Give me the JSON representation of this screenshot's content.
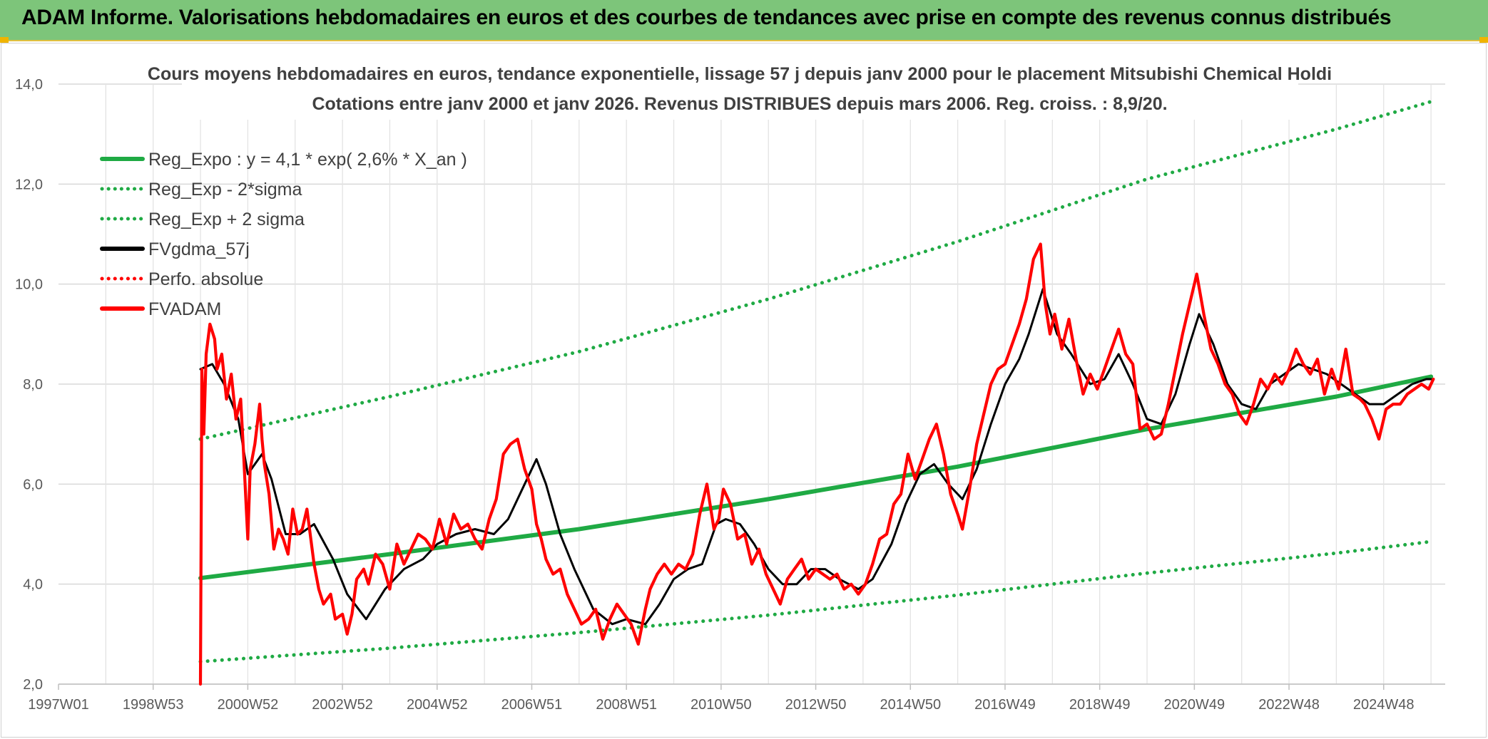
{
  "header": {
    "title": "ADAM Informe. Valorisations hebdomadaires en euros et des courbes de tendances avec prise en compte des revenus connus distribués"
  },
  "chart_data": {
    "type": "line",
    "title_line1": "Cours moyens hebdomadaires en euros, tendance exponentielle, lissage 57 j depuis janv 2000 pour le placement Mitsubishi Chemical Holdi",
    "title_line2": "Cotations entre janv 2000 et janv 2026. Revenus DISTRIBUES depuis mars 2006. Reg. croiss. : 8,9/20.",
    "xlabel": "",
    "ylabel": "",
    "ylim": [
      2.0,
      14.0
    ],
    "xlim": [
      1997.0,
      2026.3
    ],
    "y_ticks": [
      "2,0",
      "4,0",
      "6,0",
      "8,0",
      "10,0",
      "12,0",
      "14,0"
    ],
    "x_ticks": [
      "1997W01",
      "1998W53",
      "2000W52",
      "2002W52",
      "2004W52",
      "2006W51",
      "2008W51",
      "2010W50",
      "2012W50",
      "2014W50",
      "2016W49",
      "2018W49",
      "2020W49",
      "2022W48",
      "2024W48"
    ],
    "grid": true,
    "legend_position": "top-left",
    "series": [
      {
        "name": "Reg_Expo : y = 4,1 * exp( 2,6% *  X_an )",
        "style": "solid",
        "color": "#1faa44",
        "x": [
          2000.0,
          2004.0,
          2008.0,
          2012.0,
          2016.0,
          2020.0,
          2024.0,
          2026.0
        ],
        "y": [
          4.12,
          4.6,
          5.1,
          5.7,
          6.35,
          7.1,
          7.75,
          8.15
        ]
      },
      {
        "name": "Reg_Exp - 2*sigma",
        "style": "dotted",
        "color": "#1faa44",
        "x": [
          2000.0,
          2004.0,
          2008.0,
          2012.0,
          2016.0,
          2020.0,
          2024.0,
          2026.0
        ],
        "y": [
          2.45,
          2.72,
          3.03,
          3.38,
          3.78,
          4.22,
          4.62,
          4.85
        ]
      },
      {
        "name": "Reg_Exp + 2 sigma",
        "style": "dotted",
        "color": "#1faa44",
        "x": [
          2000.0,
          2004.0,
          2008.0,
          2012.0,
          2016.0,
          2020.0,
          2024.0,
          2026.0
        ],
        "y": [
          6.9,
          7.75,
          8.65,
          9.7,
          10.85,
          12.1,
          13.1,
          13.65
        ]
      },
      {
        "name": "FVgdma_57j",
        "style": "solid",
        "color": "#000000",
        "x": [
          2000.0,
          2000.25,
          2000.5,
          2000.8,
          2001.0,
          2001.3,
          2001.5,
          2001.8,
          2002.1,
          2002.4,
          2002.8,
          2003.1,
          2003.5,
          2003.9,
          2004.3,
          2004.7,
          2005.0,
          2005.4,
          2005.8,
          2006.2,
          2006.5,
          2006.8,
          2007.1,
          2007.3,
          2007.6,
          2007.9,
          2008.3,
          2008.7,
          2009.0,
          2009.4,
          2009.7,
          2010.0,
          2010.3,
          2010.6,
          2010.9,
          2011.1,
          2011.4,
          2011.7,
          2012.0,
          2012.3,
          2012.6,
          2012.9,
          2013.2,
          2013.5,
          2013.9,
          2014.2,
          2014.6,
          2014.9,
          2015.2,
          2015.5,
          2015.8,
          2016.1,
          2016.4,
          2016.7,
          2017.0,
          2017.3,
          2017.5,
          2017.8,
          2018.1,
          2018.4,
          2018.8,
          2019.1,
          2019.4,
          2019.7,
          2020.0,
          2020.3,
          2020.6,
          2020.9,
          2021.1,
          2021.4,
          2021.7,
          2022.0,
          2022.3,
          2022.6,
          2022.9,
          2023.2,
          2023.5,
          2023.8,
          2024.1,
          2024.4,
          2024.7,
          2025.0,
          2025.3,
          2025.6,
          2025.9,
          2026.0
        ],
        "y": [
          8.3,
          8.4,
          8.0,
          7.3,
          6.2,
          6.6,
          6.1,
          5.0,
          5.0,
          5.2,
          4.5,
          3.8,
          3.3,
          3.9,
          4.3,
          4.5,
          4.8,
          5.0,
          5.1,
          5.0,
          5.3,
          5.9,
          6.5,
          6.0,
          5.0,
          4.3,
          3.5,
          3.2,
          3.3,
          3.2,
          3.6,
          4.1,
          4.3,
          4.4,
          5.2,
          5.3,
          5.2,
          4.8,
          4.3,
          4.0,
          4.0,
          4.3,
          4.3,
          4.1,
          3.9,
          4.1,
          4.8,
          5.6,
          6.2,
          6.4,
          6.0,
          5.7,
          6.3,
          7.2,
          8.0,
          8.5,
          9.0,
          9.9,
          9.0,
          8.6,
          8.0,
          8.1,
          8.6,
          8.0,
          7.3,
          7.2,
          7.8,
          8.8,
          9.4,
          8.8,
          8.0,
          7.6,
          7.5,
          8.0,
          8.2,
          8.4,
          8.3,
          8.2,
          8.0,
          7.8,
          7.6,
          7.6,
          7.8,
          8.0,
          8.1,
          8.1
        ]
      },
      {
        "name": "Perfo. absolue",
        "style": "dotted",
        "color": "#ff0000",
        "x": [],
        "y": []
      },
      {
        "name": "FVADAM",
        "style": "solid",
        "color": "#ff0000",
        "x": [
          2000.0,
          2000.03,
          2000.07,
          2000.12,
          2000.2,
          2000.3,
          2000.35,
          2000.45,
          2000.55,
          2000.65,
          2000.75,
          2000.85,
          2000.9,
          2001.0,
          2001.05,
          2001.15,
          2001.25,
          2001.3,
          2001.35,
          2001.45,
          2001.55,
          2001.65,
          2001.75,
          2001.85,
          2001.95,
          2002.05,
          2002.15,
          2002.25,
          2002.4,
          2002.5,
          2002.6,
          2002.75,
          2002.85,
          2003.0,
          2003.1,
          2003.2,
          2003.3,
          2003.45,
          2003.55,
          2003.7,
          2003.85,
          2004.0,
          2004.15,
          2004.3,
          2004.45,
          2004.6,
          2004.75,
          2004.9,
          2005.05,
          2005.2,
          2005.35,
          2005.5,
          2005.65,
          2005.8,
          2005.95,
          2006.1,
          2006.25,
          2006.4,
          2006.55,
          2006.7,
          2006.85,
          2007.0,
          2007.1,
          2007.2,
          2007.3,
          2007.45,
          2007.6,
          2007.75,
          2007.9,
          2008.05,
          2008.2,
          2008.35,
          2008.5,
          2008.65,
          2008.8,
          2008.95,
          2009.1,
          2009.25,
          2009.4,
          2009.5,
          2009.65,
          2009.8,
          2009.95,
          2010.1,
          2010.25,
          2010.4,
          2010.55,
          2010.7,
          2010.85,
          2010.95,
          2011.05,
          2011.2,
          2011.35,
          2011.5,
          2011.65,
          2011.8,
          2011.95,
          2012.1,
          2012.25,
          2012.4,
          2012.55,
          2012.7,
          2012.85,
          2013.0,
          2013.15,
          2013.3,
          2013.45,
          2013.6,
          2013.75,
          2013.9,
          2014.05,
          2014.2,
          2014.35,
          2014.5,
          2014.65,
          2014.8,
          2014.95,
          2015.1,
          2015.25,
          2015.4,
          2015.55,
          2015.7,
          2015.85,
          2016.0,
          2016.1,
          2016.25,
          2016.4,
          2016.55,
          2016.7,
          2016.85,
          2017.0,
          2017.15,
          2017.3,
          2017.45,
          2017.6,
          2017.75,
          2017.85,
          2017.95,
          2018.05,
          2018.2,
          2018.35,
          2018.5,
          2018.65,
          2018.8,
          2018.95,
          2019.1,
          2019.25,
          2019.4,
          2019.55,
          2019.7,
          2019.85,
          2020.0,
          2020.15,
          2020.3,
          2020.45,
          2020.6,
          2020.75,
          2020.9,
          2021.05,
          2021.2,
          2021.35,
          2021.5,
          2021.65,
          2021.8,
          2021.95,
          2022.1,
          2022.25,
          2022.4,
          2022.55,
          2022.7,
          2022.85,
          2023.0,
          2023.15,
          2023.3,
          2023.45,
          2023.6,
          2023.75,
          2023.9,
          2024.05,
          2024.2,
          2024.35,
          2024.5,
          2024.6,
          2024.75,
          2024.9,
          2025.05,
          2025.2,
          2025.35,
          2025.5,
          2025.65,
          2025.8,
          2025.95,
          2026.05
        ],
        "y": [
          2.0,
          8.3,
          7.0,
          8.6,
          9.2,
          8.9,
          8.3,
          8.6,
          7.7,
          8.2,
          7.3,
          7.7,
          6.8,
          4.9,
          6.3,
          6.8,
          7.6,
          6.9,
          6.4,
          5.8,
          4.7,
          5.1,
          4.9,
          4.6,
          5.5,
          5.0,
          5.1,
          5.5,
          4.4,
          3.9,
          3.6,
          3.8,
          3.3,
          3.4,
          3.0,
          3.4,
          4.1,
          4.3,
          4.0,
          4.6,
          4.4,
          3.9,
          4.8,
          4.4,
          4.7,
          5.0,
          4.9,
          4.7,
          5.3,
          4.8,
          5.4,
          5.1,
          5.2,
          4.9,
          4.7,
          5.3,
          5.7,
          6.6,
          6.8,
          6.9,
          6.3,
          5.9,
          5.2,
          4.9,
          4.5,
          4.2,
          4.3,
          3.8,
          3.5,
          3.2,
          3.3,
          3.5,
          2.9,
          3.3,
          3.6,
          3.4,
          3.2,
          2.8,
          3.5,
          3.9,
          4.2,
          4.4,
          4.2,
          4.4,
          4.3,
          4.6,
          5.4,
          6.0,
          5.1,
          5.3,
          5.9,
          5.6,
          4.9,
          5.0,
          4.4,
          4.7,
          4.2,
          3.9,
          3.6,
          4.1,
          4.3,
          4.5,
          4.1,
          4.3,
          4.2,
          4.1,
          4.2,
          3.9,
          4.0,
          3.8,
          4.0,
          4.4,
          4.9,
          5.0,
          5.6,
          5.8,
          6.6,
          6.1,
          6.5,
          6.9,
          7.2,
          6.6,
          5.8,
          5.4,
          5.1,
          5.9,
          6.8,
          7.4,
          8.0,
          8.3,
          8.4,
          8.8,
          9.2,
          9.7,
          10.5,
          10.8,
          9.6,
          9.0,
          9.4,
          8.7,
          9.3,
          8.5,
          7.8,
          8.2,
          7.9,
          8.3,
          8.7,
          9.1,
          8.6,
          8.4,
          7.1,
          7.2,
          6.9,
          7.0,
          7.6,
          8.3,
          9.0,
          9.6,
          10.2,
          9.4,
          8.7,
          8.4,
          8.0,
          7.8,
          7.4,
          7.2,
          7.6,
          8.1,
          7.9,
          8.2,
          8.0,
          8.3,
          8.7,
          8.4,
          8.2,
          8.5,
          7.8,
          8.3,
          7.9,
          8.7,
          7.8,
          7.7,
          7.6,
          7.3,
          6.9,
          7.5,
          7.6,
          7.6,
          7.8,
          7.9,
          8.0,
          7.9,
          8.1
        ]
      }
    ]
  }
}
